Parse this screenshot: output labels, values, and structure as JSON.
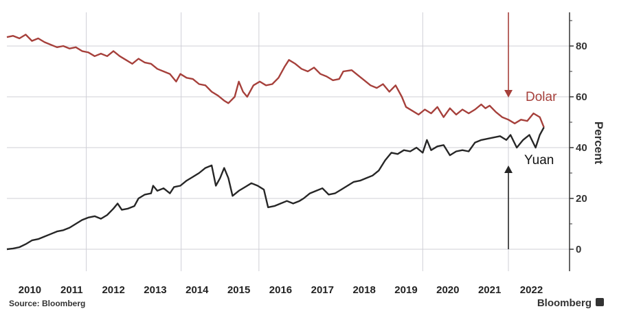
{
  "chart_data": {
    "type": "line",
    "ylabel": "Percent",
    "ylim": [
      -8,
      94
    ],
    "xlim": [
      2009.55,
      2022.7
    ],
    "yticks": [
      "0",
      "20",
      "40",
      "60",
      "80"
    ],
    "xticks": [
      "2010",
      "2011",
      "2012",
      "2013",
      "2014",
      "2015",
      "2016",
      "2017",
      "2018",
      "2019",
      "2020",
      "2021",
      "2022"
    ],
    "grid": true,
    "series": [
      {
        "name": "Dolar",
        "color": "#a6403b",
        "points": [
          [
            2009.55,
            83.5
          ],
          [
            2009.7,
            84
          ],
          [
            2009.85,
            83
          ],
          [
            2010.0,
            84.5
          ],
          [
            2010.15,
            82
          ],
          [
            2010.3,
            83
          ],
          [
            2010.45,
            81.5
          ],
          [
            2010.6,
            80.5
          ],
          [
            2010.75,
            79.5
          ],
          [
            2010.9,
            80
          ],
          [
            2011.05,
            79
          ],
          [
            2011.2,
            79.5
          ],
          [
            2011.35,
            78
          ],
          [
            2011.5,
            77.5
          ],
          [
            2011.65,
            76
          ],
          [
            2011.8,
            77
          ],
          [
            2011.95,
            76
          ],
          [
            2012.1,
            78
          ],
          [
            2012.25,
            76
          ],
          [
            2012.4,
            74.5
          ],
          [
            2012.55,
            73
          ],
          [
            2012.7,
            75
          ],
          [
            2012.85,
            73.5
          ],
          [
            2013.0,
            73
          ],
          [
            2013.15,
            71
          ],
          [
            2013.3,
            70
          ],
          [
            2013.45,
            69
          ],
          [
            2013.6,
            66
          ],
          [
            2013.7,
            69
          ],
          [
            2013.85,
            67.5
          ],
          [
            2014.0,
            67
          ],
          [
            2014.15,
            65
          ],
          [
            2014.3,
            64.5
          ],
          [
            2014.45,
            62
          ],
          [
            2014.6,
            60.5
          ],
          [
            2014.75,
            58.5
          ],
          [
            2014.85,
            57.5
          ],
          [
            2015.0,
            60
          ],
          [
            2015.1,
            66
          ],
          [
            2015.2,
            62
          ],
          [
            2015.3,
            60
          ],
          [
            2015.45,
            64.5
          ],
          [
            2015.6,
            66
          ],
          [
            2015.75,
            64.5
          ],
          [
            2015.9,
            65
          ],
          [
            2016.05,
            67.5
          ],
          [
            2016.2,
            72
          ],
          [
            2016.3,
            74.5
          ],
          [
            2016.45,
            73
          ],
          [
            2016.6,
            71
          ],
          [
            2016.75,
            70
          ],
          [
            2016.9,
            71.5
          ],
          [
            2017.05,
            69
          ],
          [
            2017.2,
            68
          ],
          [
            2017.35,
            66.5
          ],
          [
            2017.5,
            67
          ],
          [
            2017.6,
            70
          ],
          [
            2017.8,
            70.5
          ],
          [
            2017.95,
            68.5
          ],
          [
            2018.1,
            66.5
          ],
          [
            2018.25,
            64.5
          ],
          [
            2018.4,
            63.5
          ],
          [
            2018.55,
            65
          ],
          [
            2018.7,
            62
          ],
          [
            2018.85,
            64.5
          ],
          [
            2019.0,
            60
          ],
          [
            2019.1,
            56
          ],
          [
            2019.25,
            54.5
          ],
          [
            2019.4,
            53
          ],
          [
            2019.55,
            55
          ],
          [
            2019.7,
            53.5
          ],
          [
            2019.85,
            56
          ],
          [
            2020.0,
            52
          ],
          [
            2020.15,
            55.5
          ],
          [
            2020.3,
            53
          ],
          [
            2020.45,
            55
          ],
          [
            2020.6,
            53.5
          ],
          [
            2020.75,
            55
          ],
          [
            2020.9,
            57
          ],
          [
            2021.0,
            55.5
          ],
          [
            2021.1,
            56.5
          ],
          [
            2021.25,
            54
          ],
          [
            2021.4,
            52
          ],
          [
            2021.55,
            51
          ],
          [
            2021.7,
            49.5
          ],
          [
            2021.85,
            51
          ],
          [
            2022.0,
            50.5
          ],
          [
            2022.15,
            53.5
          ],
          [
            2022.3,
            52
          ],
          [
            2022.4,
            48
          ]
        ]
      },
      {
        "name": "Yuan",
        "color": "#262626",
        "points": [
          [
            2009.55,
            0
          ],
          [
            2009.7,
            0.3
          ],
          [
            2009.85,
            0.8
          ],
          [
            2010.0,
            2
          ],
          [
            2010.15,
            3.5
          ],
          [
            2010.3,
            4
          ],
          [
            2010.45,
            5
          ],
          [
            2010.6,
            6
          ],
          [
            2010.75,
            7
          ],
          [
            2010.9,
            7.5
          ],
          [
            2011.05,
            8.5
          ],
          [
            2011.2,
            10
          ],
          [
            2011.35,
            11.5
          ],
          [
            2011.5,
            12.5
          ],
          [
            2011.65,
            13
          ],
          [
            2011.8,
            12
          ],
          [
            2011.95,
            13.5
          ],
          [
            2012.1,
            16
          ],
          [
            2012.2,
            18
          ],
          [
            2012.3,
            15.5
          ],
          [
            2012.45,
            16
          ],
          [
            2012.6,
            17
          ],
          [
            2012.7,
            20
          ],
          [
            2012.85,
            21.5
          ],
          [
            2013.0,
            22
          ],
          [
            2013.05,
            25
          ],
          [
            2013.15,
            23
          ],
          [
            2013.3,
            24
          ],
          [
            2013.45,
            22
          ],
          [
            2013.55,
            24.5
          ],
          [
            2013.7,
            25
          ],
          [
            2013.85,
            27
          ],
          [
            2014.0,
            28.5
          ],
          [
            2014.15,
            30
          ],
          [
            2014.3,
            32
          ],
          [
            2014.45,
            33
          ],
          [
            2014.55,
            25
          ],
          [
            2014.65,
            28
          ],
          [
            2014.75,
            32
          ],
          [
            2014.85,
            28
          ],
          [
            2014.95,
            21
          ],
          [
            2015.1,
            23
          ],
          [
            2015.25,
            24.5
          ],
          [
            2015.4,
            26
          ],
          [
            2015.55,
            25
          ],
          [
            2015.7,
            23.5
          ],
          [
            2015.8,
            16.5
          ],
          [
            2015.95,
            17
          ],
          [
            2016.1,
            18
          ],
          [
            2016.25,
            19
          ],
          [
            2016.4,
            18
          ],
          [
            2016.55,
            19
          ],
          [
            2016.65,
            20
          ],
          [
            2016.8,
            22
          ],
          [
            2016.95,
            23
          ],
          [
            2017.1,
            24
          ],
          [
            2017.25,
            21.5
          ],
          [
            2017.4,
            22
          ],
          [
            2017.55,
            23.5
          ],
          [
            2017.7,
            25
          ],
          [
            2017.85,
            26.5
          ],
          [
            2018.0,
            27
          ],
          [
            2018.15,
            28
          ],
          [
            2018.3,
            29
          ],
          [
            2018.45,
            31
          ],
          [
            2018.6,
            35
          ],
          [
            2018.75,
            38
          ],
          [
            2018.9,
            37.5
          ],
          [
            2019.05,
            39
          ],
          [
            2019.2,
            38.5
          ],
          [
            2019.35,
            40
          ],
          [
            2019.5,
            38
          ],
          [
            2019.6,
            43
          ],
          [
            2019.7,
            39
          ],
          [
            2019.85,
            40.5
          ],
          [
            2020.0,
            41
          ],
          [
            2020.15,
            37
          ],
          [
            2020.3,
            38.5
          ],
          [
            2020.45,
            39
          ],
          [
            2020.6,
            38.5
          ],
          [
            2020.75,
            42
          ],
          [
            2020.9,
            43
          ],
          [
            2021.05,
            43.5
          ],
          [
            2021.2,
            44
          ],
          [
            2021.35,
            44.5
          ],
          [
            2021.5,
            43
          ],
          [
            2021.6,
            45
          ],
          [
            2021.75,
            40
          ],
          [
            2021.9,
            43
          ],
          [
            2022.05,
            45
          ],
          [
            2022.2,
            40
          ],
          [
            2022.3,
            45
          ],
          [
            2022.4,
            48
          ]
        ]
      }
    ],
    "annotations": [
      {
        "text": "Dolar",
        "target_series": "Dolar",
        "arrow": "down",
        "x": 2021.55
      },
      {
        "text": "Yuan",
        "target_series": "Yuan",
        "arrow": "up",
        "x": 2021.55
      }
    ],
    "source": "Source: Bloomberg",
    "brand": "Bloomberg"
  }
}
